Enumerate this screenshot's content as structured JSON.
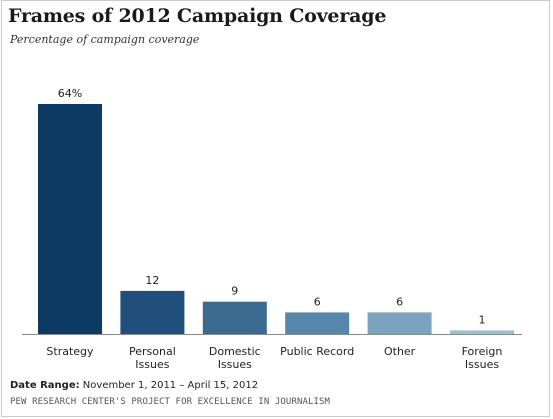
{
  "chart_data": {
    "type": "bar",
    "title": "Frames of 2012 Campaign Coverage",
    "subtitle": "Percentage of campaign coverage",
    "categories": [
      [
        "Strategy"
      ],
      [
        "Personal",
        "Issues"
      ],
      [
        "Domestic",
        "Issues"
      ],
      [
        "Public Record"
      ],
      [
        "Other"
      ],
      [
        "Foreign",
        "Issues"
      ]
    ],
    "values": [
      64,
      12,
      9,
      6,
      6,
      1
    ],
    "data_labels": [
      "64%",
      "12",
      "9",
      "6",
      "6",
      "1"
    ],
    "colors": [
      "#0d3a63",
      "#1f4f7a",
      "#3a6a90",
      "#5687ab",
      "#7aa3bf",
      "#9cc0d3"
    ],
    "ylim": [
      0,
      64
    ],
    "grid": false,
    "legend": "none"
  },
  "footer": {
    "date_range_label": "Date Range:",
    "date_range_value": "November 1, 2011 – April 15, 2012",
    "source": "PEW RESEARCH CENTER'S PROJECT FOR EXCELLENCE IN JOURNALISM"
  }
}
